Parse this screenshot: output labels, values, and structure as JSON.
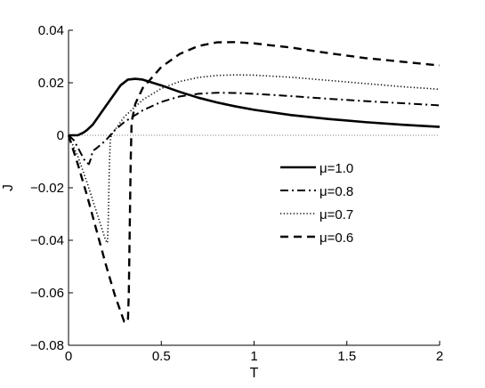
{
  "chart_data": {
    "type": "line",
    "title": "",
    "xlabel": "T",
    "ylabel": "J",
    "xlim": [
      0,
      2
    ],
    "ylim": [
      -0.08,
      0.04
    ],
    "xticks": [
      0,
      0.5,
      1,
      1.5,
      2
    ],
    "xtick_labels": [
      "0",
      "0.5",
      "1",
      "1.5",
      "2"
    ],
    "yticks": [
      -0.08,
      -0.06,
      -0.04,
      -0.02,
      0,
      0.02,
      0.04
    ],
    "ytick_labels": [
      "−0.08",
      "−0.06",
      "−0.04",
      "−0.02",
      "0",
      "0.02",
      "0.04"
    ],
    "grid": false,
    "legend_position": "center-right",
    "reference_line": {
      "y": 0,
      "style": "dotted"
    },
    "series": [
      {
        "name": "μ=1.0",
        "style": "solid",
        "points": [
          [
            0,
            0
          ],
          [
            0.05,
            0
          ],
          [
            0.08,
            0.001
          ],
          [
            0.1,
            0.002
          ],
          [
            0.13,
            0.004
          ],
          [
            0.16,
            0.007
          ],
          [
            0.2,
            0.011
          ],
          [
            0.24,
            0.015
          ],
          [
            0.28,
            0.019
          ],
          [
            0.32,
            0.0212
          ],
          [
            0.36,
            0.0215
          ],
          [
            0.4,
            0.0212
          ],
          [
            0.5,
            0.019
          ],
          [
            0.6,
            0.0165
          ],
          [
            0.7,
            0.0143
          ],
          [
            0.8,
            0.0125
          ],
          [
            0.9,
            0.011
          ],
          [
            1.0,
            0.0097
          ],
          [
            1.2,
            0.0077
          ],
          [
            1.4,
            0.0062
          ],
          [
            1.6,
            0.005
          ],
          [
            1.8,
            0.004
          ],
          [
            2.0,
            0.0032
          ]
        ]
      },
      {
        "name": "μ=0.8",
        "style": "dashdot",
        "points": [
          [
            0,
            0
          ],
          [
            0.03,
            -0.002
          ],
          [
            0.06,
            -0.006
          ],
          [
            0.09,
            -0.01
          ],
          [
            0.11,
            -0.011
          ],
          [
            0.12,
            -0.009
          ],
          [
            0.13,
            -0.006
          ],
          [
            0.15,
            -0.005
          ],
          [
            0.2,
            -0.002
          ],
          [
            0.25,
            0.002
          ],
          [
            0.3,
            0.005
          ],
          [
            0.4,
            0.0095
          ],
          [
            0.5,
            0.0127
          ],
          [
            0.6,
            0.0148
          ],
          [
            0.7,
            0.0158
          ],
          [
            0.8,
            0.0162
          ],
          [
            0.9,
            0.0161
          ],
          [
            1.0,
            0.0158
          ],
          [
            1.2,
            0.0149
          ],
          [
            1.4,
            0.0139
          ],
          [
            1.6,
            0.013
          ],
          [
            1.8,
            0.0122
          ],
          [
            2.0,
            0.0114
          ]
        ]
      },
      {
        "name": "μ=0.7",
        "style": "dotted",
        "points": [
          [
            0,
            0
          ],
          [
            0.05,
            -0.008
          ],
          [
            0.1,
            -0.018
          ],
          [
            0.15,
            -0.029
          ],
          [
            0.2,
            -0.04
          ],
          [
            0.21,
            -0.041
          ],
          [
            0.215,
            -0.03
          ],
          [
            0.22,
            -0.012
          ],
          [
            0.225,
            -0.002
          ],
          [
            0.23,
            0.0
          ],
          [
            0.26,
            0.003
          ],
          [
            0.3,
            0.007
          ],
          [
            0.4,
            0.0135
          ],
          [
            0.5,
            0.0178
          ],
          [
            0.6,
            0.0205
          ],
          [
            0.7,
            0.022
          ],
          [
            0.8,
            0.0228
          ],
          [
            0.9,
            0.023
          ],
          [
            1.0,
            0.0229
          ],
          [
            1.2,
            0.0221
          ],
          [
            1.4,
            0.0209
          ],
          [
            1.6,
            0.0197
          ],
          [
            1.8,
            0.0185
          ],
          [
            2.0,
            0.0175
          ]
        ]
      },
      {
        "name": "μ=0.6",
        "style": "dashed",
        "points": [
          [
            0,
            0
          ],
          [
            0.05,
            -0.011
          ],
          [
            0.1,
            -0.023
          ],
          [
            0.15,
            -0.036
          ],
          [
            0.2,
            -0.049
          ],
          [
            0.25,
            -0.061
          ],
          [
            0.3,
            -0.071
          ],
          [
            0.32,
            -0.071
          ],
          [
            0.325,
            -0.06
          ],
          [
            0.33,
            -0.035
          ],
          [
            0.335,
            -0.01
          ],
          [
            0.34,
            0.005
          ],
          [
            0.36,
            0.012
          ],
          [
            0.4,
            0.018
          ],
          [
            0.5,
            0.026
          ],
          [
            0.6,
            0.031
          ],
          [
            0.7,
            0.034
          ],
          [
            0.8,
            0.0354
          ],
          [
            0.9,
            0.0355
          ],
          [
            1.0,
            0.035
          ],
          [
            1.2,
            0.0334
          ],
          [
            1.4,
            0.0313
          ],
          [
            1.6,
            0.0294
          ],
          [
            1.8,
            0.028
          ],
          [
            2.0,
            0.0266
          ]
        ]
      }
    ]
  }
}
